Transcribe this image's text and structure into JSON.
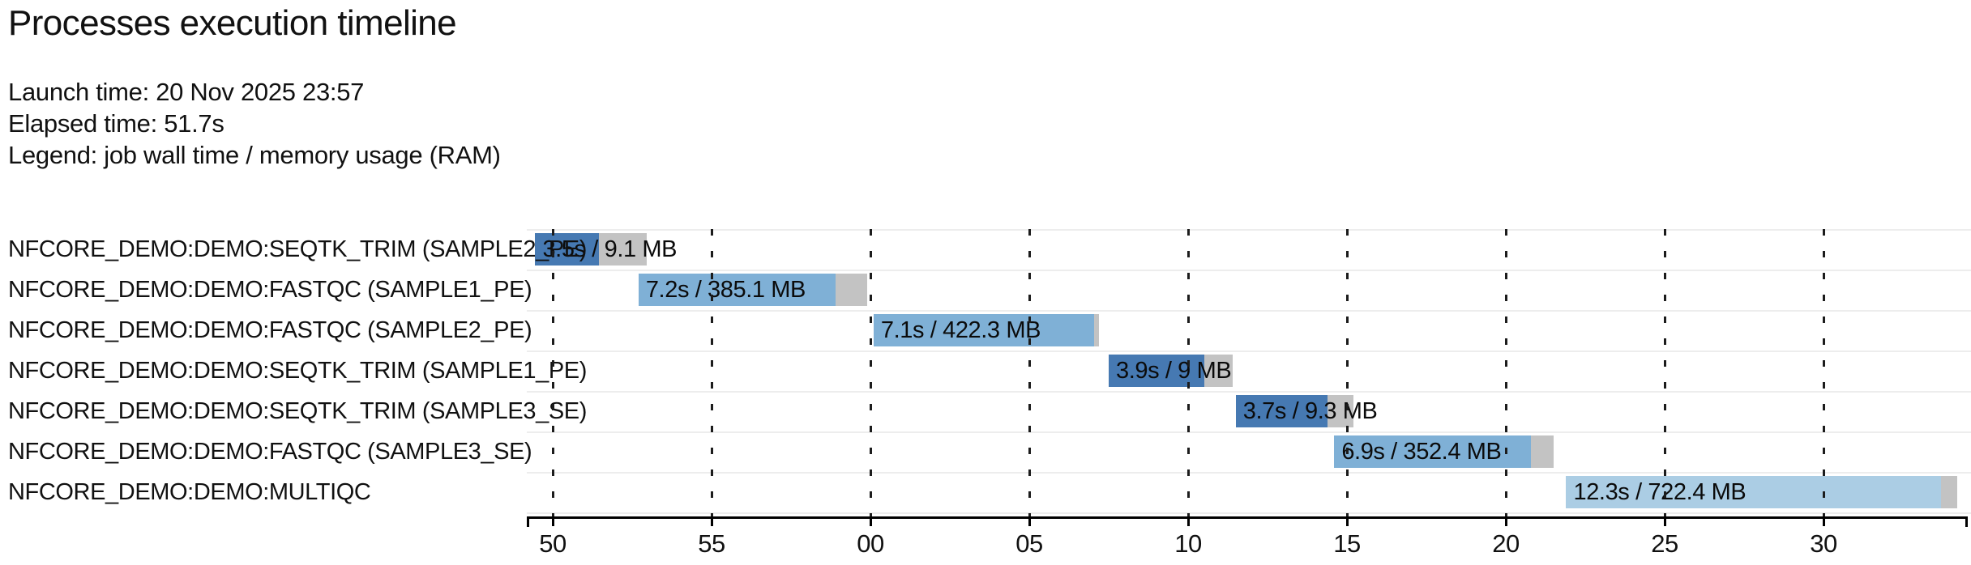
{
  "header": {
    "title": "Processes execution timeline",
    "lines": {
      "launch": "Launch time: 20 Nov 2025 23:57",
      "elapsed": "Elapsed time: 51.7s",
      "legend": "Legend: job wall time / memory usage (RAM)"
    }
  },
  "colors": {
    "process_dark_blue": "#4679B2",
    "process_medium_blue": "#7FB0D6",
    "process_pale_blue": "#ABCDE4",
    "overhead_grey": "#C3C3C3",
    "axis_black": "#000000",
    "grid_dash": "#1c1c1c",
    "row_separator": "#EDEDED",
    "text": "#111111"
  },
  "chart_data": {
    "type": "bar",
    "variant": "horizontal-gantt-timeline",
    "title": "Processes execution timeline",
    "xlabel": "",
    "ylabel": "",
    "launch_time": "20 Nov 2025 23:57",
    "elapsed_time_s": 51.7,
    "legend_note": "job wall time / memory usage (RAM)",
    "grid": "dashed-vertical",
    "x_axis": {
      "unit": "clock seconds (mm:ss, seconds digits shown, minute rolls over after 55)",
      "domain_s": [
        49.18,
        94.54
      ],
      "tick_interval_s": 5,
      "ticks": [
        {
          "t": 50,
          "label": "50"
        },
        {
          "t": 55,
          "label": "55"
        },
        {
          "t": 60,
          "label": "00"
        },
        {
          "t": 65,
          "label": "05"
        },
        {
          "t": 70,
          "label": "10"
        },
        {
          "t": 75,
          "label": "15"
        },
        {
          "t": 80,
          "label": "20"
        },
        {
          "t": 85,
          "label": "25"
        },
        {
          "t": 90,
          "label": "30"
        }
      ]
    },
    "tasks": [
      {
        "process": "NFCORE_DEMO:DEMO:SEQTK_TRIM (SAMPLE2_PE)",
        "bar_label": "3.5s / 9.1 MB",
        "wall_s": 3.5,
        "memory": "9.1 MB",
        "start_s": 49.45,
        "run_s": 2.0,
        "color": "dark"
      },
      {
        "process": "NFCORE_DEMO:DEMO:FASTQC (SAMPLE1_PE)",
        "bar_label": "7.2s / 385.1 MB",
        "wall_s": 7.2,
        "memory": "385.1 MB",
        "start_s": 52.7,
        "run_s": 6.2,
        "color": "medium"
      },
      {
        "process": "NFCORE_DEMO:DEMO:FASTQC (SAMPLE2_PE)",
        "bar_label": "7.1s / 422.3 MB",
        "wall_s": 7.1,
        "memory": "422.3 MB",
        "start_s": 60.1,
        "run_s": 6.95,
        "color": "medium"
      },
      {
        "process": "NFCORE_DEMO:DEMO:SEQTK_TRIM (SAMPLE1_PE)",
        "bar_label": "3.9s / 9 MB",
        "wall_s": 3.9,
        "memory": "9 MB",
        "start_s": 67.5,
        "run_s": 3.0,
        "color": "dark"
      },
      {
        "process": "NFCORE_DEMO:DEMO:SEQTK_TRIM (SAMPLE3_SE)",
        "bar_label": "3.7s / 9.3 MB",
        "wall_s": 3.7,
        "memory": "9.3 MB",
        "start_s": 71.5,
        "run_s": 2.9,
        "color": "dark"
      },
      {
        "process": "NFCORE_DEMO:DEMO:FASTQC (SAMPLE3_SE)",
        "bar_label": "6.9s / 352.4 MB",
        "wall_s": 6.9,
        "memory": "352.4 MB",
        "start_s": 74.6,
        "run_s": 6.2,
        "color": "medium"
      },
      {
        "process": "NFCORE_DEMO:DEMO:MULTIQC",
        "bar_label": "12.3s / 722.4 MB",
        "wall_s": 12.3,
        "memory": "722.4 MB",
        "start_s": 81.9,
        "run_s": 11.8,
        "color": "pale"
      }
    ]
  }
}
